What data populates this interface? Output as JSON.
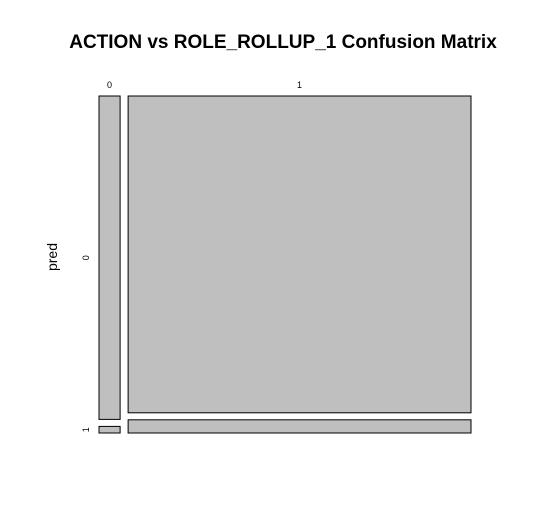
{
  "chart_data": {
    "type": "mosaic",
    "title": "ACTION vs ROLE_ROLLUP_1 Confusion Matrix",
    "xlabel": "",
    "ylabel": "pred",
    "column_categories": [
      "0",
      "1"
    ],
    "row_categories": [
      "0",
      "1"
    ],
    "column_proportions": [
      0.058,
      0.942
    ],
    "row_proportions_within_column": [
      [
        0.98,
        0.02
      ],
      [
        0.96,
        0.04
      ]
    ],
    "fill_color": "#bfbfbf",
    "grid": false,
    "legend": "none"
  }
}
